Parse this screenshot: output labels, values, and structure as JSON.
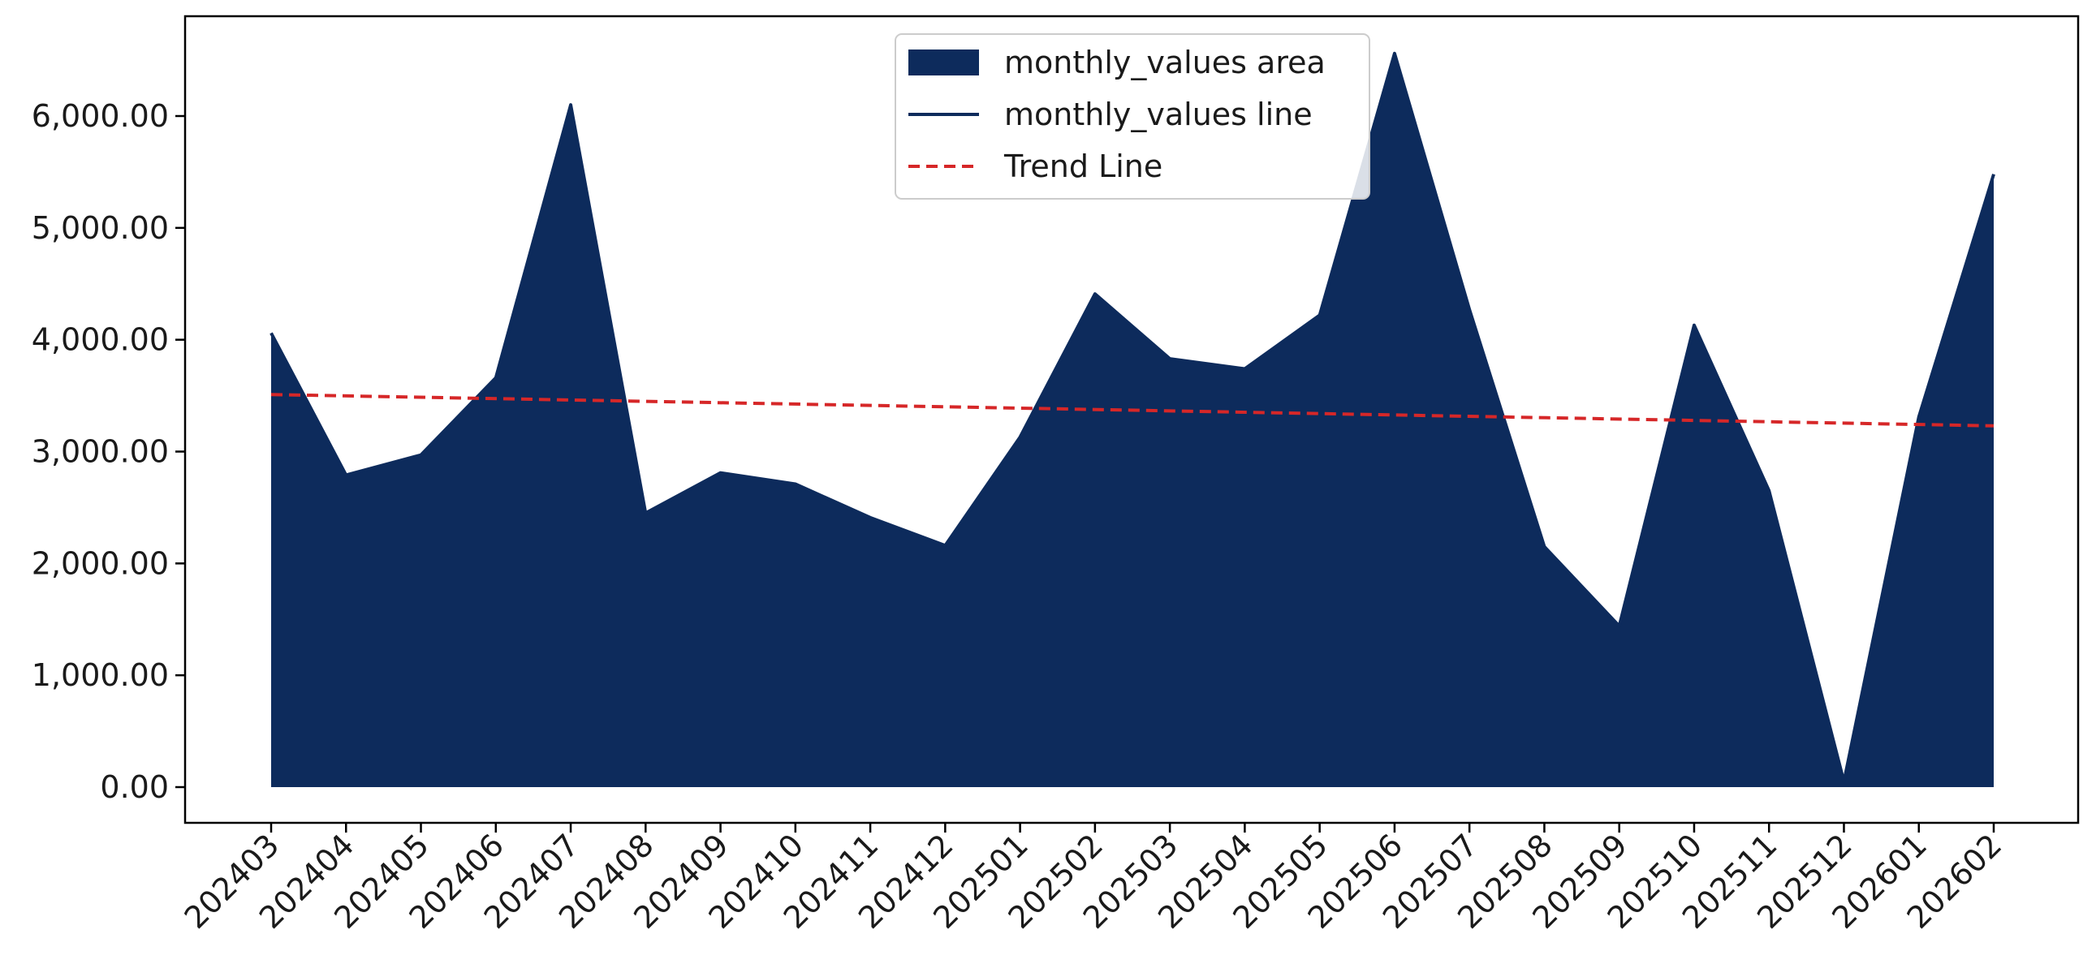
{
  "chart_data": {
    "type": "area",
    "title": "",
    "xlabel": "",
    "ylabel": "",
    "categories": [
      "202403",
      "202404",
      "202405",
      "202406",
      "202407",
      "202408",
      "202409",
      "202410",
      "202411",
      "202412",
      "202501",
      "202502",
      "202503",
      "202504",
      "202505",
      "202506",
      "202507",
      "202508",
      "202509",
      "202510",
      "202511",
      "202512",
      "202601",
      "202602"
    ],
    "series": [
      {
        "name": "monthly_values area",
        "kind": "area",
        "color": "#0d2b5c",
        "values": [
          4060,
          2790,
          2970,
          3660,
          6100,
          2450,
          2810,
          2710,
          2410,
          2160,
          3130,
          4410,
          3830,
          3740,
          4220,
          6560,
          4270,
          2150,
          1440,
          4130,
          2650,
          50,
          3310,
          5480
        ]
      },
      {
        "name": "monthly_values line",
        "kind": "line",
        "color": "#0d2b5c",
        "values": [
          4060,
          2790,
          2970,
          3660,
          6100,
          2450,
          2810,
          2710,
          2410,
          2160,
          3130,
          4410,
          3830,
          3740,
          4220,
          6560,
          4270,
          2150,
          1440,
          4130,
          2650,
          50,
          3310,
          5480
        ]
      },
      {
        "name": "Trend Line",
        "kind": "trend",
        "color": "#d62728",
        "style": "dashed",
        "start": 3510,
        "end": 3230
      }
    ],
    "yticks": [
      0,
      1000,
      2000,
      3000,
      4000,
      5000,
      6000
    ],
    "ytick_labels": [
      "0.00",
      "1,000.00",
      "2,000.00",
      "3,000.00",
      "4,000.00",
      "5,000.00",
      "6,000.00"
    ],
    "ylim": [
      -330,
      6910
    ],
    "grid": false,
    "legend_position": "top-center"
  }
}
